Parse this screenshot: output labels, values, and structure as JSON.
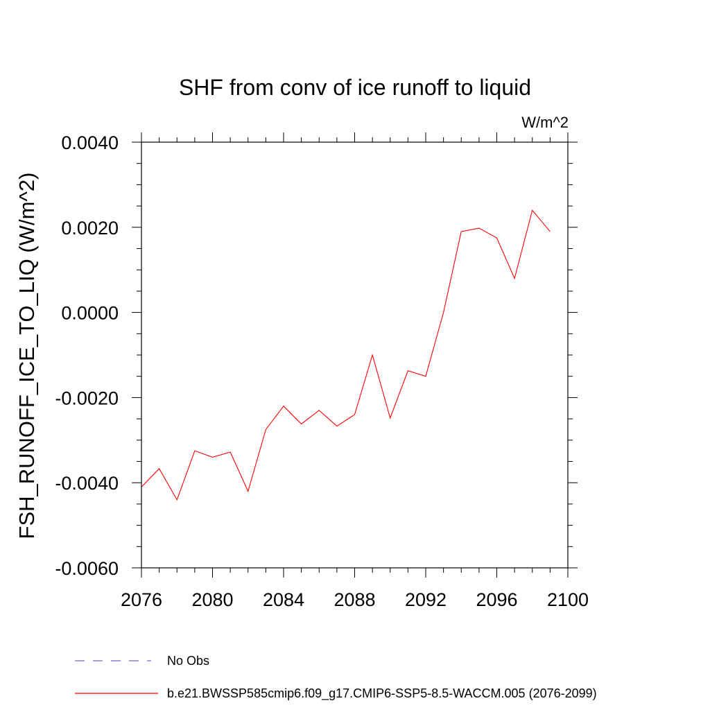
{
  "chart_data": {
    "type": "line",
    "title": "SHF from conv of ice runoff to liquid",
    "units_label": "W/m^2",
    "ylabel": "FSH_RUNOFF_ICE_TO_LIQ  (W/m^2)",
    "xlabel": "",
    "xlim": [
      2076,
      2100
    ],
    "ylim": [
      -0.006,
      0.004
    ],
    "x_ticks": [
      2076,
      2080,
      2084,
      2088,
      2092,
      2096,
      2100
    ],
    "x_tick_labels": [
      "2076",
      "2080",
      "2084",
      "2088",
      "2092",
      "2096",
      "2100"
    ],
    "y_ticks": [
      0.004,
      0.002,
      0.0,
      -0.002,
      -0.004,
      -0.006
    ],
    "y_tick_labels": [
      "0.0040",
      "0.0020",
      "0.0000",
      "-0.0020",
      "-0.0040",
      "-0.0060"
    ],
    "grid": false,
    "legend_position": "bottom",
    "series": [
      {
        "name": "b.e21.BWSSP585cmip6.f09_g17.CMIP6-SSP5-8.5-WACCM.005 (2076-2099)",
        "color": "#ff0000",
        "style": "solid",
        "x": [
          2076,
          2077,
          2078,
          2079,
          2080,
          2081,
          2082,
          2083,
          2084,
          2085,
          2086,
          2087,
          2088,
          2089,
          2090,
          2091,
          2092,
          2093,
          2094,
          2095,
          2096,
          2097,
          2098,
          2099
        ],
        "y": [
          -0.0041,
          -0.00367,
          -0.0044,
          -0.00325,
          -0.0034,
          -0.00328,
          -0.0042,
          -0.00275,
          -0.0022,
          -0.00262,
          -0.0023,
          -0.00267,
          -0.0024,
          -0.001,
          -0.00248,
          -0.00137,
          -0.0015,
          0.0,
          0.0019,
          0.00198,
          0.00175,
          0.0008,
          0.0024,
          0.0019
        ]
      }
    ],
    "legend": [
      {
        "label": "No Obs",
        "color": "#7b68c8",
        "style": "dashed"
      },
      {
        "label": "b.e21.BWSSP585cmip6.f09_g17.CMIP6-SSP5-8.5-WACCM.005 (2076-2099)",
        "color": "#ff0000",
        "style": "solid"
      }
    ]
  }
}
